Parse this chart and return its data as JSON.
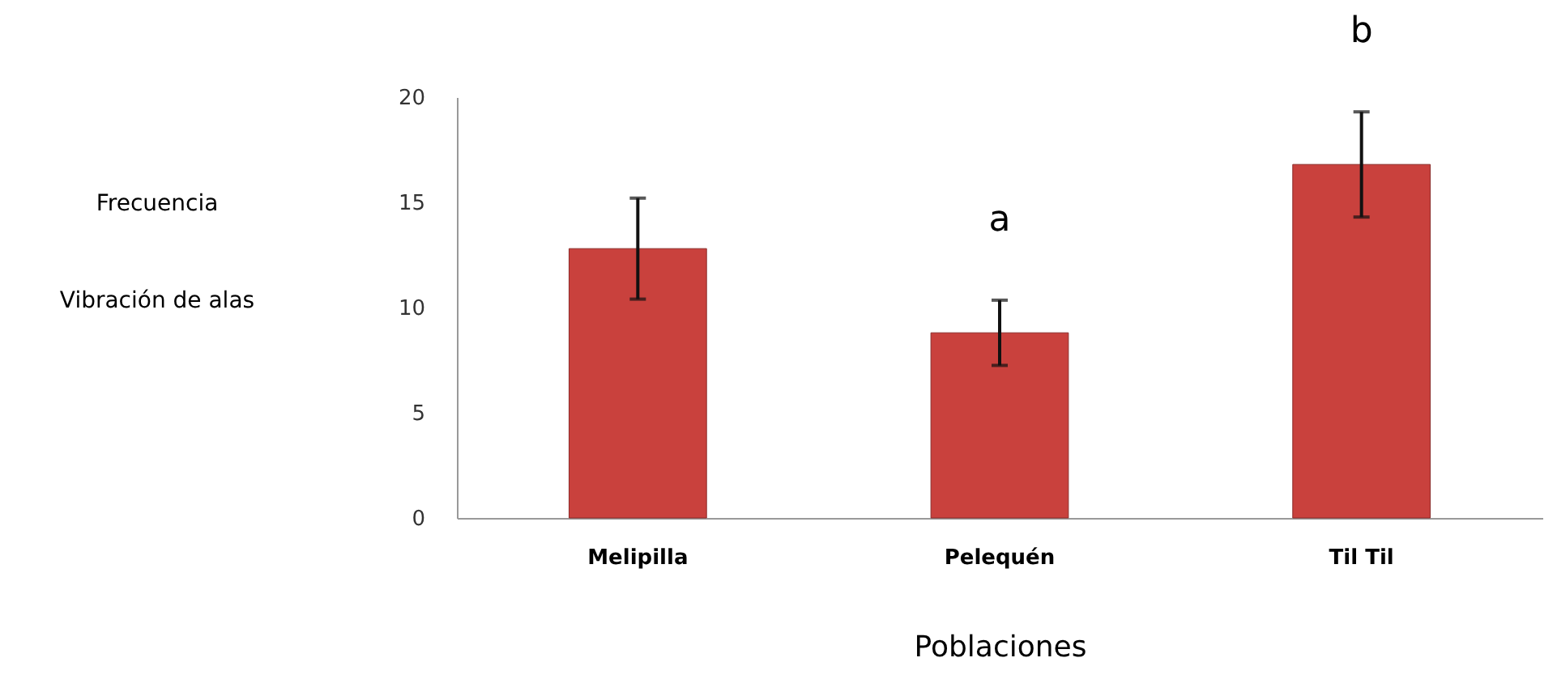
{
  "chart_data": {
    "type": "bar",
    "xlabel": "Poblaciones",
    "ylabel": "Frecuencia\nVibración de alas",
    "categories": [
      "Melipilla",
      "Pelequén",
      "Til Til"
    ],
    "values": [
      12.8,
      8.8,
      16.8
    ],
    "errors": [
      [
        10.4,
        15.2
      ],
      [
        7.25,
        10.35
      ],
      [
        14.3,
        19.3
      ]
    ],
    "color": "#c9413d",
    "ylim": [
      0,
      20
    ],
    "yticks": [
      0,
      5,
      10,
      15,
      20
    ],
    "grid": false,
    "annotations": [
      "a",
      "b"
    ]
  }
}
